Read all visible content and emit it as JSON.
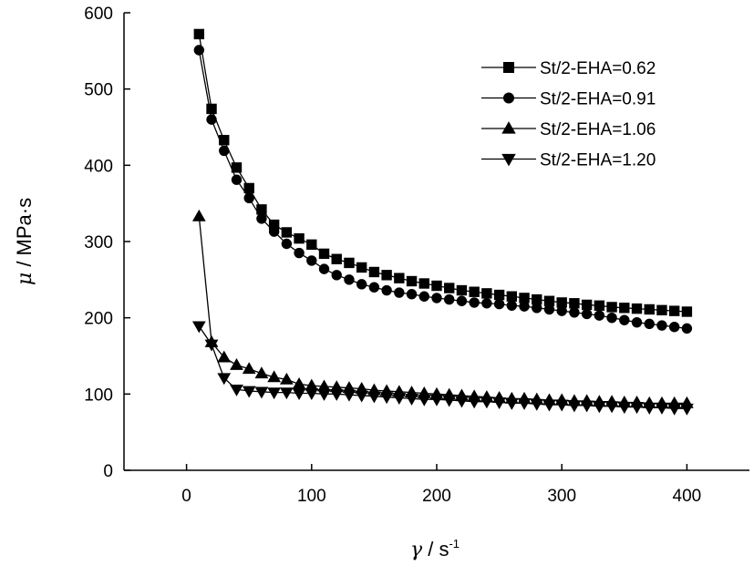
{
  "chart_data": {
    "type": "line",
    "xlabel": {
      "symbol": "γ",
      "rest": " / s",
      "sup": "-1"
    },
    "ylabel": {
      "symbol": "μ",
      "rest": " / MPa·s"
    },
    "xlim": [
      -50,
      450
    ],
    "ylim": [
      0,
      600
    ],
    "xticks": [
      0,
      100,
      200,
      300,
      400
    ],
    "yticks": [
      0,
      100,
      200,
      300,
      400,
      500,
      600
    ],
    "grid": false,
    "legend_position": "top-right",
    "series": [
      {
        "name": "St/2-EHA=0.62",
        "marker": "square",
        "x": [
          10,
          20,
          30,
          40,
          50,
          60,
          70,
          80,
          90,
          100,
          110,
          120,
          130,
          140,
          150,
          160,
          170,
          180,
          190,
          200,
          210,
          220,
          230,
          240,
          250,
          260,
          270,
          280,
          290,
          300,
          310,
          320,
          330,
          340,
          350,
          360,
          370,
          380,
          390,
          400
        ],
        "y": [
          572,
          474,
          433,
          397,
          370,
          342,
          322,
          312,
          304,
          296,
          284,
          277,
          272,
          266,
          260,
          256,
          252,
          248,
          245,
          242,
          239,
          236,
          234,
          232,
          230,
          228,
          226,
          224,
          222,
          220,
          219,
          217,
          216,
          214,
          213,
          212,
          211,
          210,
          209,
          208
        ]
      },
      {
        "name": "St/2-EHA=0.91",
        "marker": "circle",
        "x": [
          10,
          20,
          30,
          40,
          50,
          60,
          70,
          80,
          90,
          100,
          110,
          120,
          130,
          140,
          150,
          160,
          170,
          180,
          190,
          200,
          210,
          220,
          230,
          240,
          250,
          260,
          270,
          280,
          290,
          300,
          310,
          320,
          330,
          340,
          350,
          360,
          370,
          380,
          390,
          400
        ],
        "y": [
          551,
          460,
          419,
          381,
          357,
          330,
          313,
          297,
          285,
          275,
          264,
          256,
          250,
          244,
          240,
          236,
          233,
          231,
          228,
          226,
          224,
          222,
          220,
          219,
          218,
          216,
          215,
          213,
          211,
          209,
          207,
          205,
          203,
          200,
          197,
          194,
          192,
          190,
          188,
          186
        ]
      },
      {
        "name": "St/2-EHA=1.06",
        "marker": "triangle-up",
        "x": [
          10,
          20,
          30,
          40,
          50,
          60,
          70,
          80,
          90,
          100,
          110,
          120,
          130,
          140,
          150,
          160,
          170,
          180,
          190,
          200,
          210,
          220,
          230,
          240,
          250,
          260,
          270,
          280,
          290,
          300,
          310,
          320,
          330,
          340,
          350,
          360,
          370,
          380,
          390,
          400
        ],
        "y": [
          333,
          168,
          148,
          138,
          133,
          127,
          122,
          119,
          113,
          111,
          110,
          109,
          108,
          107,
          105,
          104,
          103,
          102,
          101,
          100,
          99,
          98,
          97,
          96,
          95,
          94,
          94,
          93,
          92,
          92,
          91,
          91,
          90,
          90,
          89,
          89,
          88,
          88,
          88,
          88
        ]
      },
      {
        "name": "St/2-EHA=1.20",
        "marker": "triangle-down",
        "x": [
          10,
          20,
          30,
          40,
          50,
          60,
          70,
          80,
          90,
          100,
          110,
          120,
          130,
          140,
          150,
          160,
          170,
          180,
          190,
          200,
          210,
          220,
          230,
          240,
          250,
          260,
          270,
          280,
          290,
          300,
          310,
          320,
          330,
          340,
          350,
          360,
          370,
          380,
          390,
          400
        ],
        "y": [
          189,
          165,
          121,
          106,
          104,
          103,
          102,
          102,
          101,
          101,
          100,
          100,
          99,
          98,
          97,
          96,
          95,
          94,
          93,
          93,
          92,
          91,
          90,
          90,
          89,
          88,
          88,
          87,
          86,
          86,
          85,
          85,
          84,
          84,
          83,
          83,
          82,
          82,
          81,
          81
        ]
      }
    ]
  }
}
